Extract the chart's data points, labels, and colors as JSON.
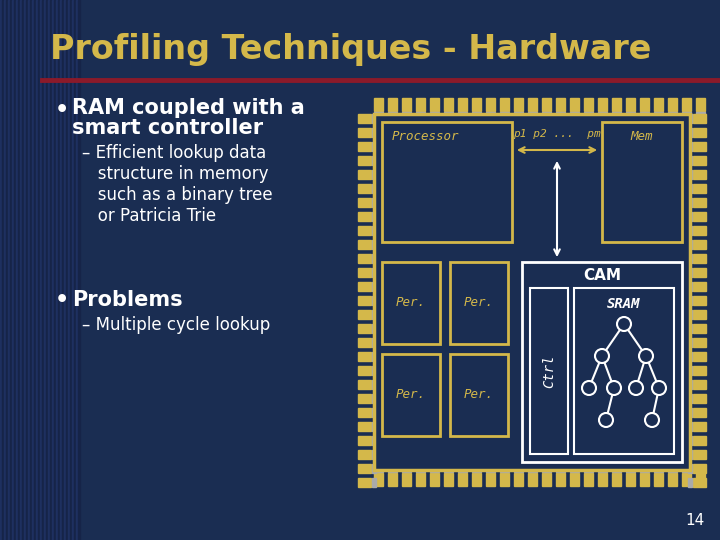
{
  "title": "Profiling Techniques - Hardware",
  "title_color": "#d4b84a",
  "bg_color": "#1a2d52",
  "left_stripe_dark": "#162448",
  "left_stripe_light": "#1e3060",
  "separator_color": "#8b1a2a",
  "text_color": "#ffffff",
  "chip_bg": "#1a2d52",
  "chip_border": "#d4b84a",
  "white": "#ffffff",
  "yellow": "#d4b84a",
  "page_num": "14",
  "processor_label": "Processor",
  "mem_label": "Mem",
  "p_label": "p1 p2 ...  pm",
  "cam_label": "CAM",
  "sram_label": "SRAM",
  "ctrl_label": "Ctrl",
  "per_label": "Per."
}
